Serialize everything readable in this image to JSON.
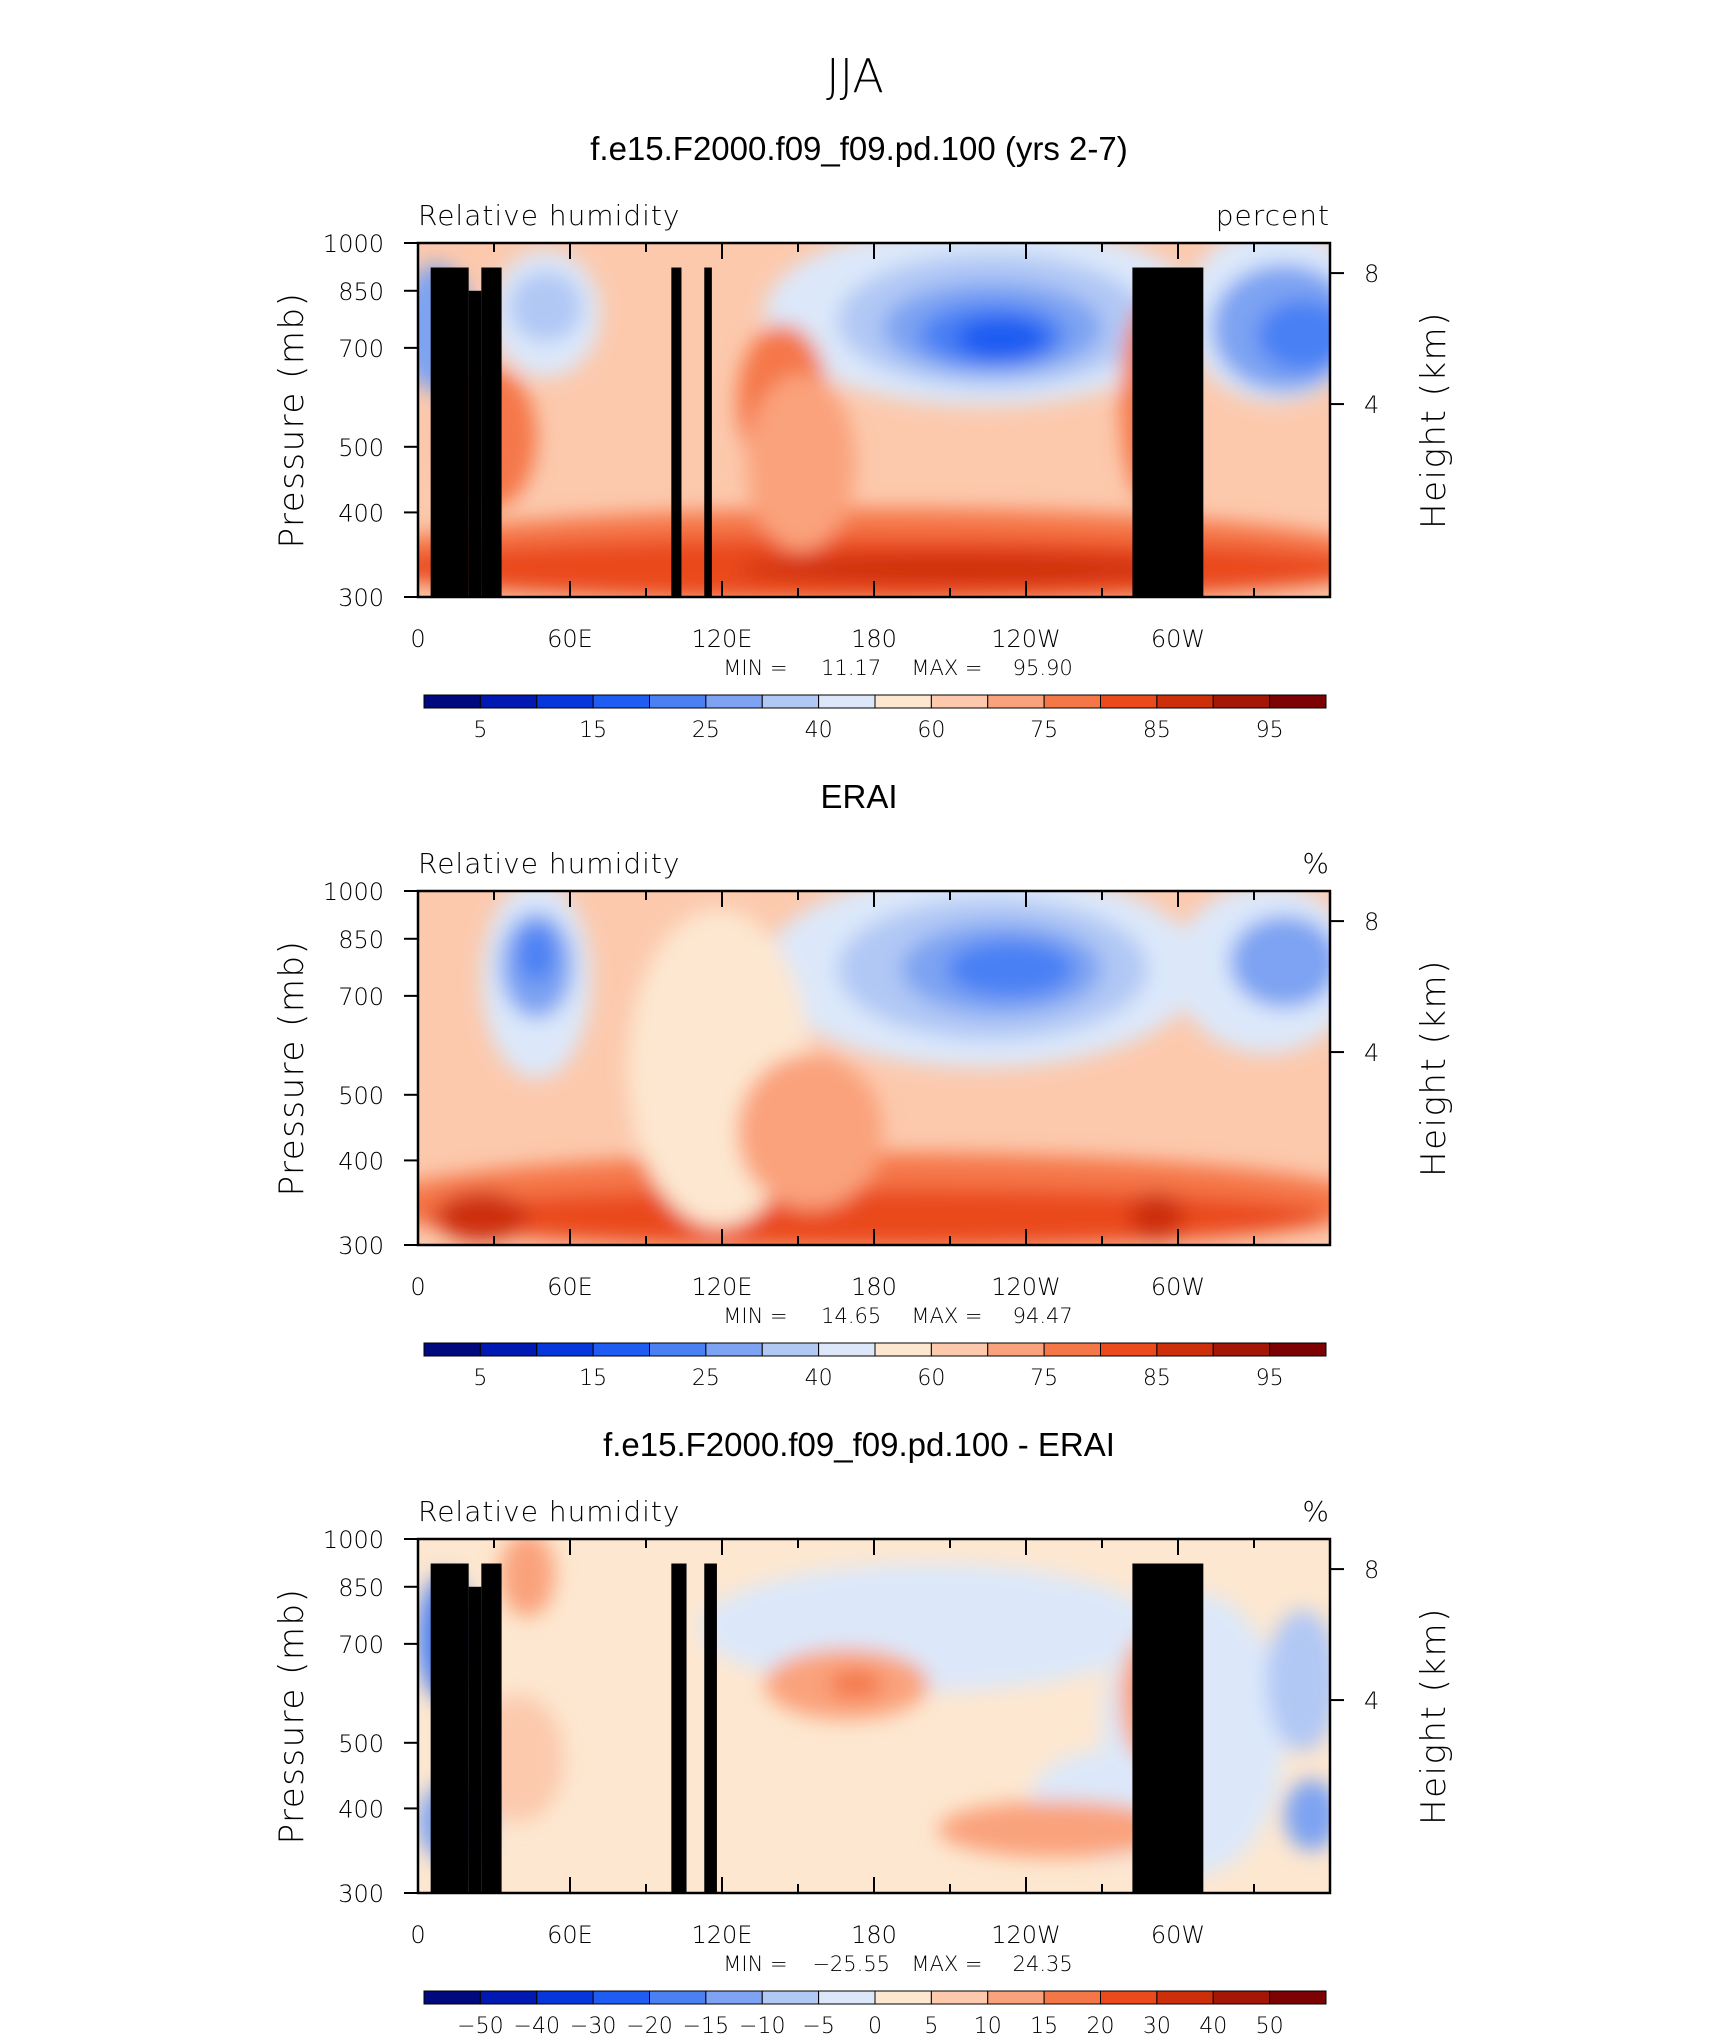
{
  "title": "JJA",
  "chart_data": [
    {
      "type": "heatmap",
      "title": "f.e15.F2000.f09_f09.pd.100 (yrs 2-7)",
      "left_label": "Relative humidity",
      "right_label": "percent",
      "ylabel": "Pressure (mb)",
      "ylabel_right": "Height (km)",
      "x_ticks": [
        "0",
        "60E",
        "120E",
        "180",
        "120W",
        "60W"
      ],
      "y_ticks": [
        "300",
        "400",
        "500",
        "700",
        "850",
        "1000"
      ],
      "height_ticks": [
        "8",
        "4"
      ],
      "ylim": [
        1000,
        300
      ],
      "x_range": [
        0,
        360
      ],
      "stats": {
        "min_label": "MIN =",
        "min": "11.17",
        "max_label": "MAX =",
        "max": "95.90"
      },
      "colorbar_labels": [
        "5",
        "15",
        "25",
        "40",
        "60",
        "75",
        "85",
        "95"
      ],
      "topography": true
    },
    {
      "type": "heatmap",
      "title": "ERAI",
      "left_label": "Relative humidity",
      "right_label": "%",
      "ylabel": "Pressure (mb)",
      "ylabel_right": "Height (km)",
      "x_ticks": [
        "0",
        "60E",
        "120E",
        "180",
        "120W",
        "60W"
      ],
      "y_ticks": [
        "300",
        "400",
        "500",
        "700",
        "850",
        "1000"
      ],
      "height_ticks": [
        "8",
        "4"
      ],
      "ylim": [
        1000,
        300
      ],
      "x_range": [
        0,
        360
      ],
      "stats": {
        "min_label": "MIN =",
        "min": "14.65",
        "max_label": "MAX =",
        "max": "94.47"
      },
      "colorbar_labels": [
        "5",
        "15",
        "25",
        "40",
        "60",
        "75",
        "85",
        "95"
      ],
      "topography": false
    },
    {
      "type": "heatmap",
      "title": "f.e15.F2000.f09_f09.pd.100 - ERAI",
      "left_label": "Relative humidity",
      "right_label": "%",
      "ylabel": "Pressure (mb)",
      "ylabel_right": "Height (km)",
      "x_ticks": [
        "0",
        "60E",
        "120E",
        "180",
        "120W",
        "60W"
      ],
      "y_ticks": [
        "300",
        "400",
        "500",
        "700",
        "850",
        "1000"
      ],
      "height_ticks": [
        "8",
        "4"
      ],
      "ylim": [
        1000,
        300
      ],
      "x_range": [
        0,
        360
      ],
      "stats": {
        "min_label": "MIN =",
        "min": "−25.55",
        "max_label": "MAX =",
        "max": "24.35"
      },
      "colorbar_labels": [
        "−50",
        "−40",
        "−30",
        "−20",
        "−15",
        "−10",
        "−5",
        "0",
        "5",
        "10",
        "15",
        "20",
        "30",
        "40",
        "50"
      ],
      "topography": true
    }
  ],
  "colors": {
    "palette": [
      "#000a7e",
      "#0019b2",
      "#0637dc",
      "#1e5cf2",
      "#4a80f4",
      "#7da3f2",
      "#b1c8f5",
      "#dce8fa",
      "#fde7d0",
      "#fcc9ad",
      "#faa27c",
      "#f57748",
      "#ea4a1c",
      "#cd2f0a",
      "#a41606",
      "#7c0203"
    ],
    "topography": "#000000"
  }
}
